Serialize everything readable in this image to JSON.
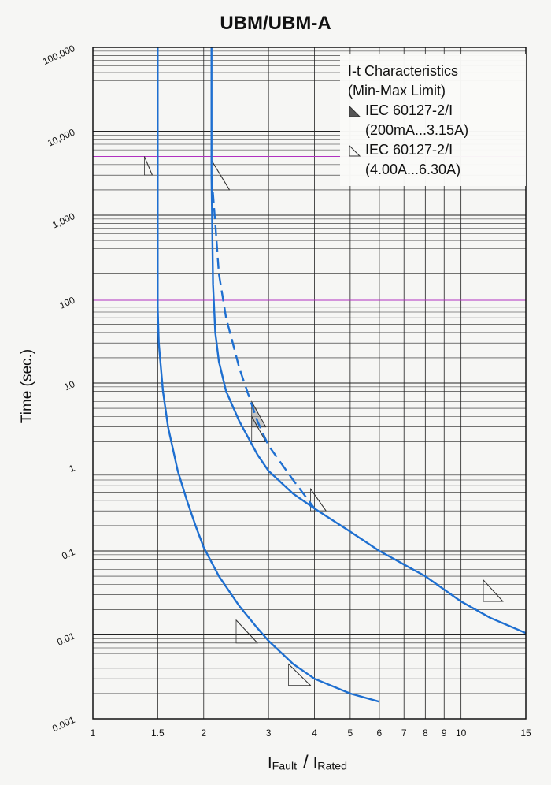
{
  "chart_data": {
    "type": "line",
    "title": "UBM/UBM-A",
    "ylabel": "Time (sec.)",
    "xlabel_main_1": "I",
    "xlabel_sub_1": "Fault",
    "xlabel_main_2": "I",
    "xlabel_sub_2": "Rated",
    "x_scale": "log",
    "y_scale": "log",
    "xlim": [
      1,
      15
    ],
    "ylim": [
      0.001,
      100000
    ],
    "grid": true,
    "x_ticks": [
      1,
      1.5,
      2,
      3,
      4,
      5,
      6,
      7,
      8,
      9,
      10,
      15
    ],
    "x_tick_labels": [
      "1",
      "1.5",
      "2",
      "3",
      "4",
      "5",
      "6",
      "7",
      "8",
      "9",
      "10",
      "15"
    ],
    "y_ticks": [
      0.001,
      0.01,
      0.1,
      1,
      10,
      100,
      1000,
      10000,
      100000
    ],
    "y_tick_labels": [
      "0.001",
      "0.01",
      "0.1",
      "1",
      "10",
      "100",
      "1,000",
      "10,000",
      "100,000"
    ],
    "legend": {
      "title_line1": "I-t Characteristics",
      "title_line2": "(Min-Max Limit)",
      "entry1_line1": "IEC 60127-2/I",
      "entry1_line2": "(200mA...3.15A)",
      "entry2_line1": "IEC 60127-2/I",
      "entry2_line2": "(4.00A...6.30A)",
      "placement": "top-right"
    },
    "series": [
      {
        "style": "solid",
        "x": [
          1.5,
          1.5,
          1.51,
          1.55,
          1.6,
          1.7,
          1.8,
          1.9,
          2.0,
          2.2,
          2.5,
          2.8,
          3.0,
          3.5,
          4.0,
          5.0,
          6.0
        ],
        "y": [
          100000,
          80,
          30,
          8,
          3,
          0.9,
          0.4,
          0.2,
          0.11,
          0.05,
          0.022,
          0.012,
          0.0085,
          0.0045,
          0.003,
          0.002,
          0.0016
        ]
      },
      {
        "style": "solid",
        "x": [
          2.1,
          2.1,
          2.12,
          2.15,
          2.2,
          2.3,
          2.5,
          2.8,
          3.0,
          3.5,
          4.0,
          5.0,
          6.0,
          8.0,
          10.0,
          12.0,
          15.0
        ],
        "y": [
          100000,
          3000,
          150,
          40,
          18,
          8,
          3.5,
          1.4,
          0.9,
          0.48,
          0.32,
          0.17,
          0.1,
          0.05,
          0.025,
          0.016,
          0.0105
        ]
      },
      {
        "style": "dashed",
        "x": [
          2.1,
          2.15,
          2.2,
          2.3,
          2.5,
          2.8,
          3.0,
          3.5,
          4.0
        ],
        "y": [
          3000,
          800,
          200,
          60,
          15,
          3.5,
          1.8,
          0.7,
          0.32
        ]
      }
    ],
    "limit_markers": [
      {
        "filled": false,
        "x": [
          1.38,
          1.45
        ],
        "y": [
          3000,
          5000
        ]
      },
      {
        "filled": false,
        "x": [
          2.1,
          2.35
        ],
        "y": [
          2000,
          4500
        ]
      },
      {
        "filled": true,
        "x": [
          2.7,
          2.95
        ],
        "y": [
          3,
          6
        ]
      },
      {
        "filled": false,
        "x": [
          2.7,
          2.95
        ],
        "y": [
          2,
          4
        ]
      },
      {
        "filled": false,
        "x": [
          3.9,
          4.3
        ],
        "y": [
          0.3,
          0.55
        ]
      },
      {
        "filled": false,
        "x": [
          11.5,
          13
        ],
        "y": [
          0.025,
          0.045
        ]
      },
      {
        "filled": false,
        "x": [
          2.45,
          2.8
        ],
        "y": [
          0.008,
          0.015
        ]
      },
      {
        "filled": false,
        "x": [
          3.4,
          3.9
        ],
        "y": [
          0.0025,
          0.0045
        ]
      }
    ],
    "colors": {
      "curve": "#1e6fd0",
      "grid": "#222222",
      "magenta_line": "#b030c0",
      "teal_line": "#20a0a0"
    },
    "reference_lines": [
      {
        "color": "magenta",
        "y": 5000
      },
      {
        "color": "teal",
        "y": 100
      },
      {
        "color": "magenta",
        "y": 100
      }
    ]
  }
}
